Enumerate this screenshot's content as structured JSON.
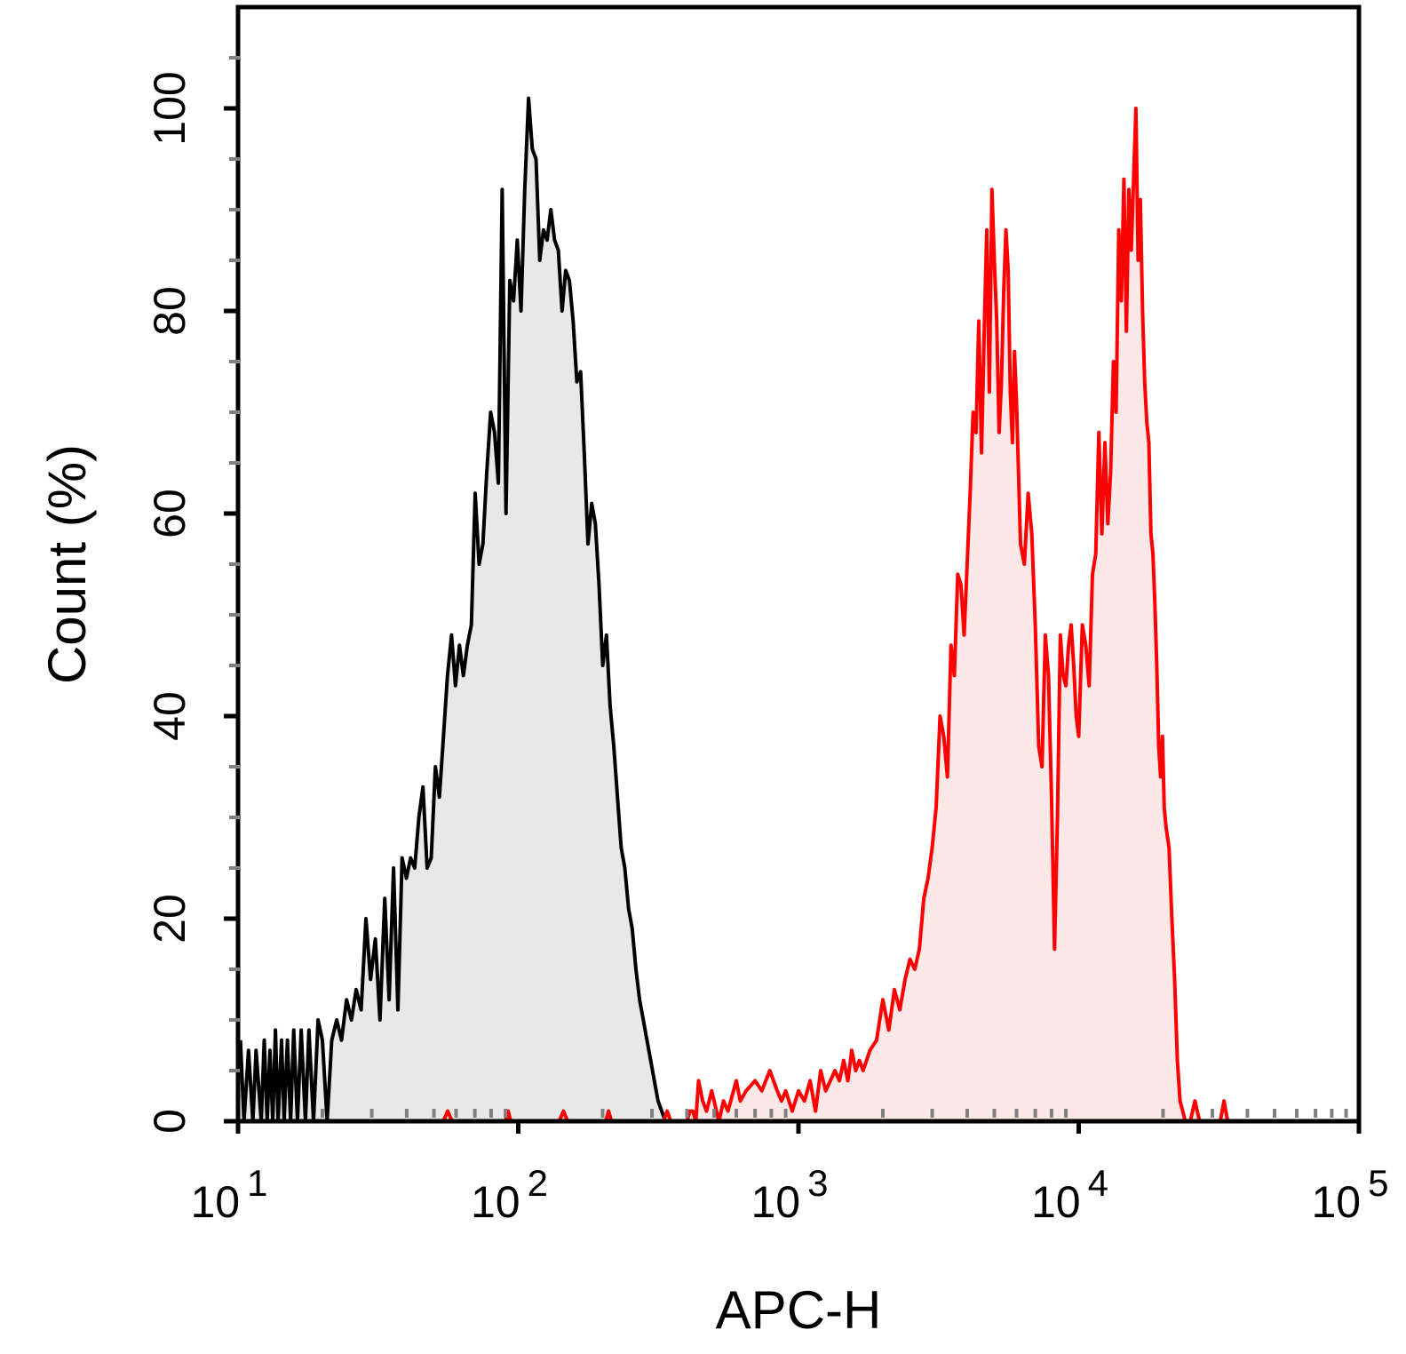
{
  "chart_data": {
    "type": "area",
    "title": "",
    "xlabel": "APC-H",
    "ylabel": "Count  (%)",
    "x_scale": "log",
    "xlim": [
      10,
      100000
    ],
    "ylim": [
      0,
      110
    ],
    "grid": false,
    "x_tick_labels": [
      {
        "base": "10",
        "exp": "1",
        "value": 10
      },
      {
        "base": "10",
        "exp": "2",
        "value": 100
      },
      {
        "base": "10",
        "exp": "3",
        "value": 1000
      },
      {
        "base": "10",
        "exp": "4",
        "value": 10000
      },
      {
        "base": "10",
        "exp": "5",
        "value": 100000
      }
    ],
    "y_ticks": [
      0,
      20,
      40,
      60,
      80,
      100
    ],
    "y_tick_labels": [
      "0",
      "20",
      "40",
      "60",
      "80",
      "100"
    ],
    "series": [
      {
        "color": "#000000",
        "fill": "#e8e8e8",
        "points": [
          [
            10.2,
            8
          ],
          [
            10.5,
            0
          ],
          [
            10.9,
            7
          ],
          [
            11.3,
            0
          ],
          [
            11.6,
            7
          ],
          [
            12.1,
            0
          ],
          [
            12.4,
            8
          ],
          [
            12.7,
            0
          ],
          [
            13.0,
            7
          ],
          [
            13.3,
            0
          ],
          [
            13.6,
            9
          ],
          [
            13.9,
            0
          ],
          [
            14.3,
            8
          ],
          [
            14.6,
            0
          ],
          [
            15.0,
            8
          ],
          [
            15.4,
            0
          ],
          [
            15.8,
            9
          ],
          [
            16.3,
            0
          ],
          [
            16.8,
            9
          ],
          [
            17.4,
            0
          ],
          [
            17.9,
            9
          ],
          [
            18.6,
            0
          ],
          [
            19.3,
            10
          ],
          [
            20.0,
            8
          ],
          [
            20.8,
            0
          ],
          [
            21.6,
            8
          ],
          [
            22.5,
            10
          ],
          [
            23.4,
            8
          ],
          [
            24.4,
            12
          ],
          [
            25.4,
            10
          ],
          [
            26.4,
            13
          ],
          [
            27.5,
            11
          ],
          [
            28.6,
            20
          ],
          [
            29.7,
            14
          ],
          [
            30.9,
            18
          ],
          [
            32.1,
            10
          ],
          [
            33.4,
            22
          ],
          [
            34.6,
            12
          ],
          [
            35.9,
            25
          ],
          [
            37.2,
            11
          ],
          [
            38.5,
            26
          ],
          [
            39.9,
            24
          ],
          [
            41.3,
            26
          ],
          [
            42.7,
            25
          ],
          [
            44.2,
            30
          ],
          [
            45.7,
            33
          ],
          [
            47.3,
            25
          ],
          [
            48.9,
            26
          ],
          [
            50.6,
            35
          ],
          [
            52.3,
            32
          ],
          [
            54.1,
            38
          ],
          [
            55.9,
            44
          ],
          [
            57.8,
            48
          ],
          [
            59.7,
            43
          ],
          [
            61.7,
            47
          ],
          [
            63.7,
            44
          ],
          [
            65.8,
            47
          ],
          [
            68.0,
            49
          ],
          [
            70.2,
            62
          ],
          [
            72.5,
            55
          ],
          [
            74.8,
            57
          ],
          [
            77.2,
            64
          ],
          [
            79.7,
            70
          ],
          [
            82.3,
            68
          ],
          [
            84.9,
            63
          ],
          [
            87.6,
            92
          ],
          [
            90.4,
            60
          ],
          [
            93.3,
            83
          ],
          [
            96.2,
            81
          ],
          [
            99.2,
            87
          ],
          [
            102.3,
            80
          ],
          [
            105.5,
            92
          ],
          [
            108.8,
            101
          ],
          [
            112.2,
            96
          ],
          [
            115.7,
            95
          ],
          [
            119.3,
            85
          ],
          [
            123.0,
            88
          ],
          [
            126.8,
            87
          ],
          [
            130.7,
            90
          ],
          [
            134.8,
            87
          ],
          [
            139.0,
            86
          ],
          [
            143.3,
            80
          ],
          [
            147.7,
            84
          ],
          [
            152.3,
            83
          ],
          [
            157.0,
            79
          ],
          [
            161.9,
            73
          ],
          [
            166.9,
            74
          ],
          [
            172.0,
            66
          ],
          [
            177.3,
            57
          ],
          [
            182.8,
            61
          ],
          [
            188.4,
            59
          ],
          [
            194.2,
            53
          ],
          [
            200.2,
            45
          ],
          [
            206.4,
            48
          ],
          [
            212.7,
            41
          ],
          [
            219.3,
            37
          ],
          [
            226.0,
            32
          ],
          [
            233.0,
            27
          ],
          [
            240.1,
            25
          ],
          [
            247.5,
            21
          ],
          [
            255.1,
            19
          ],
          [
            263.0,
            15
          ],
          [
            271.0,
            12
          ],
          [
            279.4,
            10
          ],
          [
            288.0,
            8
          ],
          [
            296.8,
            6
          ],
          [
            306.0,
            4
          ],
          [
            315.4,
            2
          ],
          [
            325.1,
            1
          ],
          [
            335.1,
            0
          ]
        ]
      },
      {
        "color": "#ff0000",
        "fill": "#fde8e8",
        "points": [
          [
            54,
            0
          ],
          [
            56,
            1
          ],
          [
            58,
            0
          ],
          [
            90,
            0
          ],
          [
            92,
            1
          ],
          [
            94,
            0
          ],
          [
            140,
            0
          ],
          [
            145,
            1
          ],
          [
            150,
            0
          ],
          [
            205,
            0
          ],
          [
            210,
            1
          ],
          [
            215,
            0
          ],
          [
            330,
            0
          ],
          [
            340,
            1
          ],
          [
            350,
            0
          ],
          [
            400,
            0
          ],
          [
            410,
            1
          ],
          [
            420,
            1
          ],
          [
            430,
            0
          ],
          [
            440,
            4
          ],
          [
            455,
            2
          ],
          [
            470,
            1
          ],
          [
            490,
            3
          ],
          [
            500,
            2
          ],
          [
            520,
            0
          ],
          [
            540,
            2
          ],
          [
            560,
            1
          ],
          [
            600,
            4
          ],
          [
            620,
            2
          ],
          [
            650,
            3
          ],
          [
            700,
            4
          ],
          [
            740,
            3
          ],
          [
            790,
            5
          ],
          [
            840,
            3
          ],
          [
            870,
            2
          ],
          [
            900,
            3
          ],
          [
            950,
            1
          ],
          [
            1000,
            3
          ],
          [
            1050,
            2
          ],
          [
            1100,
            4
          ],
          [
            1150,
            1
          ],
          [
            1200,
            5
          ],
          [
            1250,
            3
          ],
          [
            1300,
            4
          ],
          [
            1350,
            5
          ],
          [
            1400,
            4
          ],
          [
            1450,
            6
          ],
          [
            1500,
            4
          ],
          [
            1550,
            7
          ],
          [
            1600,
            5
          ],
          [
            1650,
            6
          ],
          [
            1700,
            5
          ],
          [
            1800,
            7
          ],
          [
            1900,
            8
          ],
          [
            2000,
            12
          ],
          [
            2100,
            9
          ],
          [
            2200,
            13
          ],
          [
            2300,
            11
          ],
          [
            2400,
            14
          ],
          [
            2500,
            16
          ],
          [
            2600,
            15
          ],
          [
            2700,
            17
          ],
          [
            2800,
            22
          ],
          [
            2900,
            24
          ],
          [
            3000,
            27
          ],
          [
            3100,
            31
          ],
          [
            3200,
            40
          ],
          [
            3300,
            38
          ],
          [
            3400,
            34
          ],
          [
            3500,
            47
          ],
          [
            3600,
            44
          ],
          [
            3700,
            54
          ],
          [
            3800,
            53
          ],
          [
            3900,
            48
          ],
          [
            4000,
            55
          ],
          [
            4100,
            62
          ],
          [
            4200,
            70
          ],
          [
            4300,
            68
          ],
          [
            4400,
            79
          ],
          [
            4500,
            66
          ],
          [
            4600,
            78
          ],
          [
            4700,
            88
          ],
          [
            4800,
            72
          ],
          [
            4900,
            92
          ],
          [
            5000,
            85
          ],
          [
            5100,
            79
          ],
          [
            5200,
            68
          ],
          [
            5300,
            73
          ],
          [
            5400,
            82
          ],
          [
            5500,
            88
          ],
          [
            5600,
            84
          ],
          [
            5700,
            72
          ],
          [
            5800,
            67
          ],
          [
            5900,
            76
          ],
          [
            6000,
            71
          ],
          [
            6200,
            57
          ],
          [
            6400,
            55
          ],
          [
            6600,
            62
          ],
          [
            6800,
            58
          ],
          [
            7000,
            49
          ],
          [
            7200,
            37
          ],
          [
            7400,
            35
          ],
          [
            7600,
            48
          ],
          [
            7800,
            44
          ],
          [
            8000,
            32
          ],
          [
            8200,
            17
          ],
          [
            8400,
            30
          ],
          [
            8600,
            48
          ],
          [
            8800,
            44
          ],
          [
            9000,
            43
          ],
          [
            9200,
            47
          ],
          [
            9400,
            49
          ],
          [
            9600,
            45
          ],
          [
            9800,
            40
          ],
          [
            10000,
            38
          ],
          [
            10300,
            49
          ],
          [
            10600,
            47
          ],
          [
            10900,
            43
          ],
          [
            11200,
            54
          ],
          [
            11500,
            56
          ],
          [
            11800,
            68
          ],
          [
            12100,
            58
          ],
          [
            12400,
            67
          ],
          [
            12700,
            59
          ],
          [
            13000,
            64
          ],
          [
            13300,
            75
          ],
          [
            13600,
            70
          ],
          [
            13900,
            88
          ],
          [
            14200,
            81
          ],
          [
            14500,
            93
          ],
          [
            14800,
            78
          ],
          [
            15100,
            92
          ],
          [
            15400,
            86
          ],
          [
            15700,
            93
          ],
          [
            16000,
            100
          ],
          [
            16300,
            85
          ],
          [
            16600,
            91
          ],
          [
            16900,
            80
          ],
          [
            17200,
            73
          ],
          [
            17500,
            69
          ],
          [
            17800,
            67
          ],
          [
            18100,
            58
          ],
          [
            18400,
            56
          ],
          [
            18700,
            51
          ],
          [
            19000,
            45
          ],
          [
            19300,
            37
          ],
          [
            19600,
            34
          ],
          [
            19900,
            38
          ],
          [
            20200,
            31
          ],
          [
            20500,
            29
          ],
          [
            21000,
            27
          ],
          [
            21500,
            20
          ],
          [
            22000,
            14
          ],
          [
            22500,
            6
          ],
          [
            23000,
            2
          ],
          [
            23500,
            1
          ],
          [
            24000,
            0
          ],
          [
            25000,
            0
          ],
          [
            26000,
            2
          ],
          [
            27000,
            0
          ],
          [
            32000,
            0
          ],
          [
            33000,
            2
          ],
          [
            34000,
            0
          ]
        ]
      }
    ]
  }
}
